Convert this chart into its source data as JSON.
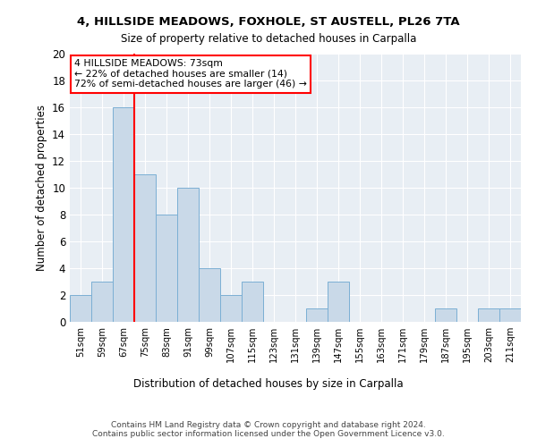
{
  "title1": "4, HILLSIDE MEADOWS, FOXHOLE, ST AUSTELL, PL26 7TA",
  "title2": "Size of property relative to detached houses in Carpalla",
  "xlabel": "Distribution of detached houses by size in Carpalla",
  "ylabel": "Number of detached properties",
  "categories": [
    "51sqm",
    "59sqm",
    "67sqm",
    "75sqm",
    "83sqm",
    "91sqm",
    "99sqm",
    "107sqm",
    "115sqm",
    "123sqm",
    "131sqm",
    "139sqm",
    "147sqm",
    "155sqm",
    "163sqm",
    "171sqm",
    "179sqm",
    "187sqm",
    "195sqm",
    "203sqm",
    "211sqm"
  ],
  "values": [
    2,
    3,
    16,
    11,
    8,
    10,
    4,
    2,
    3,
    0,
    0,
    1,
    3,
    0,
    0,
    0,
    0,
    1,
    0,
    1,
    1
  ],
  "bar_color": "#c9d9e8",
  "bar_edge_color": "#7bafd4",
  "background_color": "#e8eef4",
  "red_line_index": 2.5,
  "annotation_text": "4 HILLSIDE MEADOWS: 73sqm\n← 22% of detached houses are smaller (14)\n72% of semi-detached houses are larger (46) →",
  "annotation_box_color": "white",
  "annotation_box_edge": "red",
  "ylim": [
    0,
    20
  ],
  "yticks": [
    0,
    2,
    4,
    6,
    8,
    10,
    12,
    14,
    16,
    18,
    20
  ],
  "footer": "Contains HM Land Registry data © Crown copyright and database right 2024.\nContains public sector information licensed under the Open Government Licence v3.0."
}
